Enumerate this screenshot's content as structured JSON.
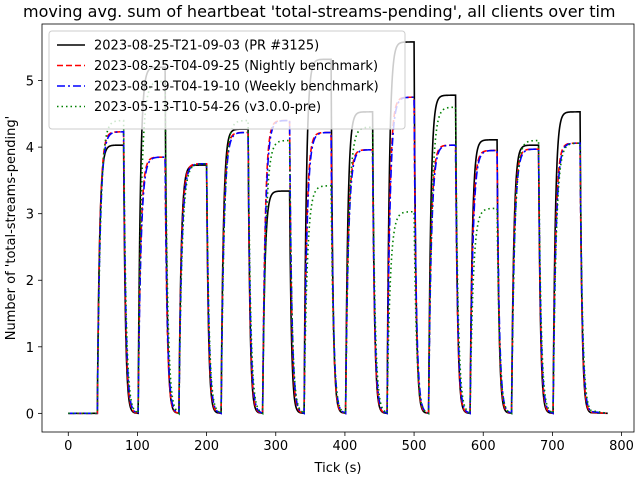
{
  "chart_data": {
    "type": "line",
    "title": "moving avg. sum of heartbeat 'total-streams-pending', all clients over tim",
    "xlabel": "Tick (s)",
    "ylabel": "Number of 'total-streams-pending'",
    "xlim": [
      -38,
      818
    ],
    "ylim": [
      -0.28,
      5.85
    ],
    "xticks": [
      0,
      100,
      200,
      300,
      400,
      500,
      600,
      700,
      800
    ],
    "yticks": [
      0,
      1,
      2,
      3,
      4,
      5
    ],
    "grid": false,
    "legend_position": "top-left",
    "pulses": [
      {
        "start": 42,
        "end": 80
      },
      {
        "start": 101,
        "end": 140
      },
      {
        "start": 160,
        "end": 200
      },
      {
        "start": 221,
        "end": 260
      },
      {
        "start": 281,
        "end": 320
      },
      {
        "start": 341,
        "end": 380
      },
      {
        "start": 401,
        "end": 440
      },
      {
        "start": 461,
        "end": 500
      },
      {
        "start": 521,
        "end": 560
      },
      {
        "start": 581,
        "end": 620
      },
      {
        "start": 641,
        "end": 680
      },
      {
        "start": 701,
        "end": 740
      }
    ],
    "x_end": 780,
    "series": [
      {
        "name": "2023-08-25-T21-09-03 (PR #3125)",
        "color": "#000000",
        "dash": "",
        "levels": [
          4.03,
          5.2,
          3.73,
          4.27,
          3.34,
          5.32,
          4.53,
          5.58,
          4.78,
          4.11,
          4.03,
          4.53
        ]
      },
      {
        "name": "2023-08-25-T04-09-25 (Nightly benchmark)",
        "color": "#ff0000",
        "dash": "6,3",
        "levels": [
          4.23,
          3.85,
          3.75,
          4.22,
          4.4,
          4.22,
          3.96,
          4.75,
          4.03,
          3.95,
          3.97,
          4.06
        ]
      },
      {
        "name": "2023-08-19-T04-19-10 (Weekly benchmark)",
        "color": "#0000ff",
        "dash": "8,3,2,3",
        "levels": [
          4.23,
          3.85,
          3.75,
          4.22,
          4.4,
          4.22,
          3.96,
          4.75,
          4.03,
          3.95,
          3.97,
          4.06
        ]
      },
      {
        "name": "2023-05-13-T10-54-26 (v3.0.0-pre)",
        "color": "#008000",
        "dash": "1.5,3",
        "levels": [
          4.4,
          4.99,
          3.75,
          4.4,
          4.1,
          3.42,
          4.3,
          3.03,
          4.6,
          3.08,
          4.1,
          4.06
        ]
      }
    ]
  }
}
